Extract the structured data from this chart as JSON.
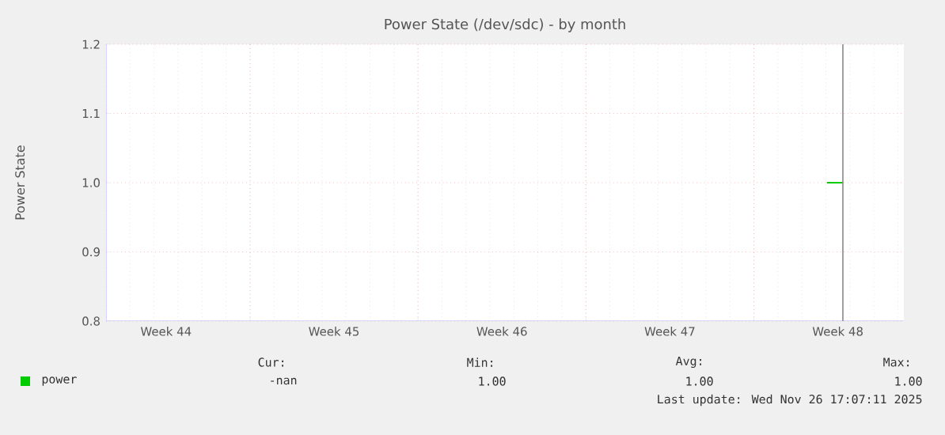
{
  "chart_data": {
    "type": "line",
    "title": "Power State (/dev/sdc) - by month",
    "ylabel": "Power State",
    "xlim": [
      "2025-10-27T00:00",
      "2025-11-29T06:00"
    ],
    "xticks": [
      {
        "value": "2025-10-29T12:00",
        "label": "Week 44"
      },
      {
        "value": "2025-11-02T00:00",
        "label": null
      },
      {
        "value": "2025-11-05T12:00",
        "label": "Week 45"
      },
      {
        "value": "2025-11-09T00:00",
        "label": null
      },
      {
        "value": "2025-11-12T12:00",
        "label": "Week 46"
      },
      {
        "value": "2025-11-16T00:00",
        "label": null
      },
      {
        "value": "2025-11-19T12:00",
        "label": "Week 47"
      },
      {
        "value": "2025-11-23T00:00",
        "label": null
      },
      {
        "value": "2025-11-26T12:00",
        "label": "Week 48"
      }
    ],
    "ylim": [
      0.8,
      1.2
    ],
    "yticks": [
      0.8,
      0.9,
      {
        "value": 1.0,
        "label": "1.0"
      },
      1.1,
      1.2
    ],
    "grid": true,
    "legend": "bottom left",
    "series": [
      {
        "name": "power",
        "color": "#00cc00",
        "x": [
          "2025-11-26T01:00",
          "2025-11-26T17:00"
        ],
        "values": [
          1,
          1
        ]
      }
    ],
    "ref_lines": [
      {
        "axis": "x",
        "value": "2025-11-26T17:00",
        "color": "#888888"
      }
    ],
    "annotations": [
      "Cur:",
      "Min:",
      "Avg:",
      "Max:",
      "-nan",
      "1.00",
      "1.00",
      "1.00",
      "Last update: Wed Nov 26 17:07:11 2025"
    ]
  }
}
